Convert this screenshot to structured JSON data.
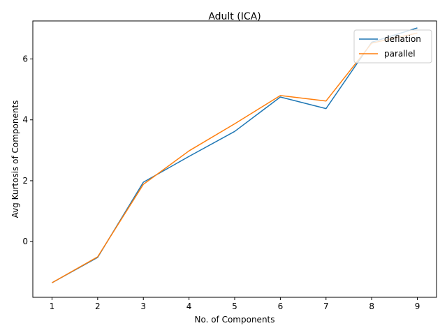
{
  "chart_data": {
    "type": "line",
    "title": "Adult (ICA)",
    "xlabel": "No. of Components",
    "ylabel": "Avg Kurtosis of Components",
    "xlim": [
      0.58,
      9.42
    ],
    "ylim": [
      -1.83,
      7.25
    ],
    "xticks": [
      1,
      2,
      3,
      4,
      5,
      6,
      7,
      8,
      9
    ],
    "yticks": [
      0,
      2,
      4,
      6
    ],
    "grid": false,
    "legend_position": "upper right",
    "series": [
      {
        "name": "deflation",
        "color": "#1f77b4",
        "x": [
          1,
          2,
          3,
          4,
          5,
          6,
          7,
          8,
          9
        ],
        "y": [
          -1.35,
          -0.52,
          1.95,
          2.8,
          3.62,
          4.75,
          4.37,
          6.55,
          7.02
        ]
      },
      {
        "name": "parallel",
        "color": "#ff7f0e",
        "x": [
          1,
          2,
          3,
          4,
          5,
          6,
          7,
          8,
          9
        ],
        "y": [
          -1.35,
          -0.5,
          1.88,
          2.98,
          3.87,
          4.8,
          4.62,
          6.52,
          6.85
        ]
      }
    ]
  }
}
